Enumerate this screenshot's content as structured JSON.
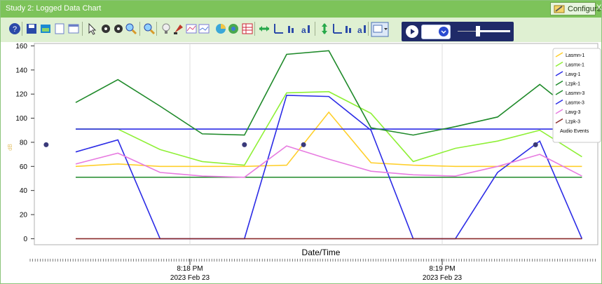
{
  "window": {
    "title": "Study 2: Logged Data Chart",
    "configure_label": "Configure",
    "close_glyph": "X"
  },
  "toolbar": {
    "icons": [
      {
        "name": "help-icon"
      },
      {
        "name": "save-icon"
      },
      {
        "name": "image-icon"
      },
      {
        "name": "new-page-icon"
      },
      {
        "name": "window-icon"
      },
      {
        "name": "pointer-icon"
      },
      {
        "name": "pan-icon"
      },
      {
        "name": "move-icon"
      },
      {
        "name": "zoom-in-icon"
      },
      {
        "name": "zoom-out-icon"
      },
      {
        "name": "bulb-icon"
      },
      {
        "name": "marker-icon"
      },
      {
        "name": "chart-line-icon"
      },
      {
        "name": "chart-compare-icon"
      },
      {
        "name": "pie-icon"
      },
      {
        "name": "globe-icon"
      },
      {
        "name": "grid-icon"
      },
      {
        "name": "horizontal-fit-icon"
      },
      {
        "name": "horizontal-align-icon"
      },
      {
        "name": "horizontal-scale-icon"
      },
      {
        "name": "horizontal-auto-icon"
      },
      {
        "name": "vertical-fit-icon"
      },
      {
        "name": "vertical-align-icon"
      },
      {
        "name": "vertical-scale-icon"
      },
      {
        "name": "vertical-auto-icon"
      },
      {
        "name": "chart-options-icon"
      }
    ]
  },
  "playback": {
    "speed_value": ""
  },
  "chart_data": {
    "type": "line",
    "ylabel": "dB",
    "xlabel": "Date/Time",
    "ylim": [
      -5,
      162
    ],
    "y_ticks": [
      0,
      20,
      40,
      60,
      80,
      100,
      120,
      140,
      160
    ],
    "x_time_labels": [
      {
        "time": "8:18 PM",
        "date": "2023 Feb 23"
      },
      {
        "time": "8:19 PM",
        "date": "2023 Feb 23"
      }
    ],
    "x_points": [
      1,
      2,
      3,
      4,
      5,
      6,
      7,
      8,
      9,
      10,
      11,
      12,
      13
    ],
    "series": [
      {
        "name": "Lasmn-1",
        "color": "#ffcf2b",
        "values": [
          60,
          62,
          60,
          60,
          60,
          61,
          105,
          63,
          61,
          60,
          60,
          60,
          60
        ]
      },
      {
        "name": "Lasmx-1",
        "color": "#8ff036",
        "values": [
          91,
          91,
          74,
          64,
          61,
          121,
          122,
          104,
          64,
          75,
          81,
          90,
          68
        ]
      },
      {
        "name": "Lavg-1",
        "color": "#2c2ce6",
        "values": [
          91,
          91,
          91,
          91,
          91,
          91,
          91,
          91,
          91,
          91,
          91,
          91,
          91
        ]
      },
      {
        "name": "Lzpk-1",
        "color": "#1f8a2a",
        "values": [
          113,
          132,
          110,
          87,
          86,
          153,
          156,
          92,
          86,
          93,
          101,
          128,
          100
        ]
      },
      {
        "name": "Lasmn-3",
        "color": "#1f8a2a",
        "values": [
          51,
          51,
          51,
          51,
          51,
          51,
          51,
          51,
          51,
          51,
          51,
          51,
          51
        ]
      },
      {
        "name": "Lasmx-3",
        "color": "#2c2ce6",
        "values": [
          72,
          82,
          0,
          0,
          0,
          119,
          118,
          90,
          0,
          0,
          55,
          81,
          0
        ]
      },
      {
        "name": "Lavg-3",
        "color": "#e77be0",
        "values": [
          62,
          71,
          55,
          52,
          51,
          77,
          66,
          56,
          53,
          52,
          60,
          70,
          52
        ]
      },
      {
        "name": "Lzpk-3",
        "color": "#8b2b2b",
        "values": [
          0,
          0,
          0,
          0,
          0,
          0,
          0,
          0,
          0,
          0,
          0,
          0,
          0
        ]
      }
    ],
    "audio_events": {
      "name": "Audio Events",
      "points": [
        {
          "x": 0.3,
          "y": 78
        },
        {
          "x": 5.0,
          "y": 78
        },
        {
          "x": 6.4,
          "y": 78
        },
        {
          "x": 11.9,
          "y": 78
        }
      ]
    },
    "legend_position": "top-right",
    "grid": true
  }
}
